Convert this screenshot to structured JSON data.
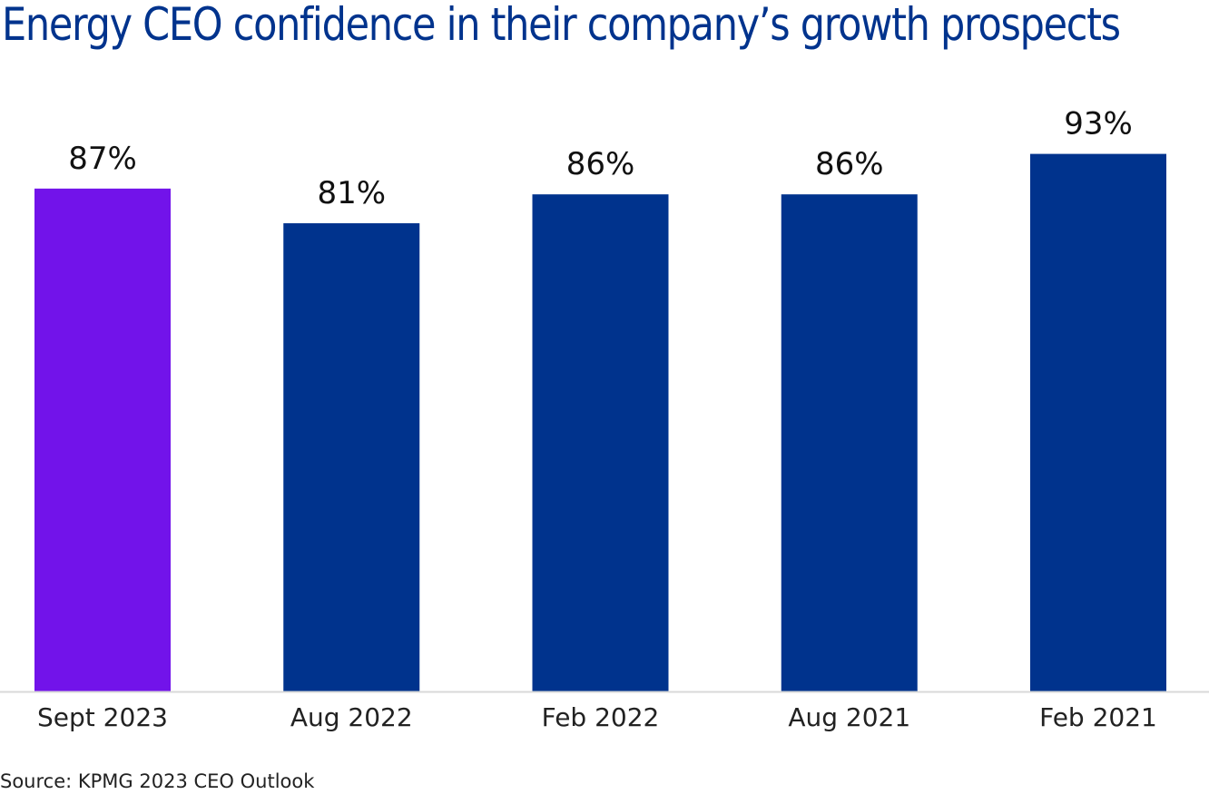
{
  "chart_data": {
    "type": "bar",
    "title": "Energy CEO confidence in their company’s growth prospects",
    "categories": [
      "Sept 2023",
      "Aug 2022",
      "Feb 2022",
      "Aug 2021",
      "Feb 2021"
    ],
    "values": [
      87,
      81,
      86,
      86,
      93
    ],
    "value_labels": [
      "87%",
      "81%",
      "86%",
      "86%",
      "93%"
    ],
    "colors": [
      "#7213ea",
      "#00338d",
      "#00338d",
      "#00338d",
      "#00338d"
    ],
    "xlabel": "",
    "ylabel": "",
    "ylim": [
      0,
      100
    ],
    "grid": false,
    "legend": "none",
    "source": "Source: KPMG 2023 CEO Outlook"
  },
  "colors": {
    "title": "#00338d",
    "highlight": "#7213ea",
    "bar": "#00338d",
    "axis": "#d9d9d9"
  }
}
